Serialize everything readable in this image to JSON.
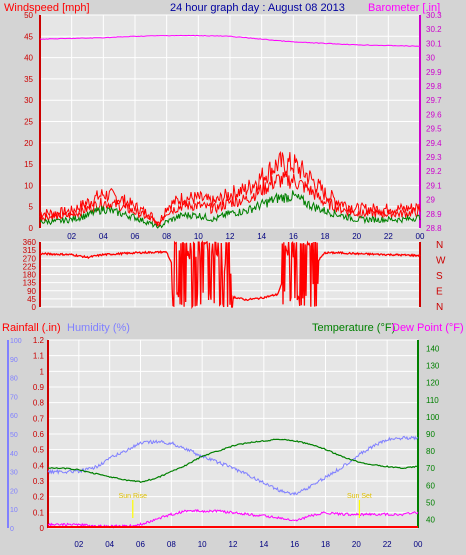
{
  "header": {
    "windspeed_label": "Windspeed [mph]",
    "title": "24 hour graph day : August 08 2013",
    "barometer_label": "Barometer [.in]"
  },
  "compass_labels": [
    "N",
    "W",
    "S",
    "E",
    "N"
  ],
  "bottom_header": {
    "rainfall_label": "Rainfall (.in)",
    "humidity_label": "Humidity (%)",
    "temperature_label": "Temperature (°F)",
    "dewpoint_label": "Dew Point (°F)"
  },
  "sun": {
    "sunrise_label": "Sun Rise",
    "sunset_label": "Sun Set",
    "sunrise_hour": 5.5,
    "sunset_hour": 20.2
  },
  "colors": {
    "background": "#d4d4d4",
    "plot_bg": "#e6e6e6",
    "grid": "#ffffff",
    "wind": "#ff0000",
    "gust": "#ff0000",
    "avg_wind": "#008000",
    "barometer": "#ff00ff",
    "direction": "#ff0000",
    "humidity": "#8080ff",
    "temperature": "#008000",
    "dewpoint": "#ff00ff",
    "rain": "#ff0000",
    "sun": "#ffff00",
    "title": "#0000a0"
  },
  "chart_data": [
    {
      "type": "line",
      "name": "wind-barometer",
      "x_ticks": [
        "02",
        "04",
        "06",
        "08",
        "10",
        "12",
        "14",
        "16",
        "18",
        "20",
        "22",
        "00"
      ],
      "y_left": {
        "ticks": [
          "0",
          "5",
          "10",
          "15",
          "20",
          "25",
          "30",
          "35",
          "40",
          "45",
          "50"
        ],
        "ylim": [
          0,
          50
        ]
      },
      "y_right": {
        "ticks": [
          "28.8",
          "28.9",
          "29",
          "29.1",
          "29.2",
          "29.3",
          "29.4",
          "29.5",
          "29.6",
          "29.7",
          "29.8",
          "29.9",
          "30",
          "30.1",
          "30.2",
          "30.3"
        ],
        "ylim": [
          28.8,
          30.3
        ]
      },
      "gust": {
        "x": [
          0,
          1,
          2,
          3,
          4,
          5,
          6,
          7,
          7.5,
          8,
          9,
          10,
          11,
          12,
          13,
          14,
          15,
          16,
          17,
          18,
          19,
          20,
          21,
          22,
          23,
          24
        ],
        "y": [
          3.5,
          3.5,
          4,
          6,
          8,
          7,
          5,
          3,
          1,
          5,
          7,
          7,
          6,
          8,
          9,
          12,
          15,
          15,
          12,
          8,
          6,
          4.5,
          4.5,
          4.5,
          4.5,
          5
        ]
      },
      "avg_wind": {
        "x": [
          0,
          1,
          2,
          3,
          4,
          5,
          6,
          7,
          7.5,
          8,
          9,
          10,
          11,
          12,
          13,
          14,
          15,
          16,
          17,
          18,
          19,
          20,
          21,
          22,
          23,
          24
        ],
        "y": [
          1.5,
          1.5,
          2,
          3,
          4.5,
          3.5,
          2.5,
          1,
          0,
          1.5,
          3,
          3,
          2,
          3.5,
          4,
          5.5,
          7,
          7.5,
          5.5,
          4,
          3,
          2,
          2,
          2,
          2,
          2.5
        ]
      },
      "barometer": {
        "x": [
          0,
          2,
          4,
          6,
          8,
          10,
          12,
          14,
          16,
          18,
          20,
          22,
          24
        ],
        "y": [
          30.13,
          30.135,
          30.14,
          30.15,
          30.155,
          30.155,
          30.15,
          30.13,
          30.11,
          30.1,
          30.09,
          30.085,
          30.08
        ]
      }
    },
    {
      "type": "line",
      "name": "wind-direction",
      "y_ticks": [
        "0",
        "45",
        "90",
        "135",
        "180",
        "225",
        "270",
        "315",
        "360"
      ],
      "ylim": [
        0,
        360
      ],
      "x": [
        0,
        2,
        3,
        4,
        6,
        8,
        8.5,
        9,
        10,
        11,
        12,
        13,
        14,
        15,
        15.5,
        16,
        17,
        18,
        19,
        20,
        22,
        24
      ],
      "y": [
        295,
        290,
        275,
        290,
        300,
        305,
        200,
        150,
        180,
        160,
        60,
        40,
        50,
        70,
        180,
        160,
        200,
        300,
        300,
        295,
        290,
        285
      ],
      "volatile_ranges": [
        [
          8.3,
          12.2
        ],
        [
          15.3,
          17.6
        ]
      ]
    },
    {
      "type": "line",
      "name": "rain-humidity-temperature",
      "x_ticks": [
        "02",
        "04",
        "06",
        "08",
        "10",
        "12",
        "14",
        "16",
        "18",
        "20",
        "22",
        "00"
      ],
      "rain_ticks": [
        "0",
        "0.1",
        "0.2",
        "0.3",
        "0.4",
        "0.5",
        "0.6",
        "0.7",
        "0.8",
        "0.9",
        "1",
        "1.1",
        "1.2"
      ],
      "rain_ylim": [
        0,
        1.2
      ],
      "humidity_ticks": [
        "0",
        "10",
        "20",
        "30",
        "40",
        "50",
        "60",
        "70",
        "80",
        "90",
        "100"
      ],
      "humidity_ylim": [
        0,
        100
      ],
      "temp_ticks": [
        "40",
        "50",
        "60",
        "70",
        "80",
        "90",
        "100",
        "110",
        "120",
        "130",
        "140"
      ],
      "temp_ylim": [
        35,
        145
      ],
      "humidity": {
        "x": [
          0,
          1,
          2,
          3,
          4,
          5,
          6,
          7,
          8,
          9,
          10,
          11,
          12,
          13,
          14,
          15,
          16,
          17,
          18,
          19,
          20,
          21,
          22,
          23,
          24
        ],
        "y": [
          30,
          30,
          30,
          32,
          37,
          41,
          45,
          46,
          45,
          42,
          38,
          35,
          32,
          28,
          24,
          20,
          18,
          22,
          27,
          32,
          38,
          43,
          47,
          48,
          48
        ]
      },
      "temperature": {
        "x": [
          0,
          1,
          2,
          3,
          4,
          5,
          6,
          7,
          8,
          9,
          10,
          11,
          12,
          13,
          14,
          15,
          16,
          17,
          18,
          19,
          20,
          21,
          22,
          23,
          24
        ],
        "y": [
          70,
          70,
          69,
          67,
          65,
          63,
          62,
          64,
          68,
          72,
          77,
          80,
          83,
          85,
          86,
          87,
          86,
          84,
          81,
          77,
          74,
          72,
          71,
          70,
          71
        ]
      },
      "dewpoint": {
        "x": [
          0,
          1,
          2,
          3,
          4,
          5,
          6,
          7,
          8,
          9,
          10,
          11,
          12,
          13,
          14,
          15,
          16,
          17,
          18,
          19,
          20,
          21,
          22,
          23,
          24
        ],
        "y": [
          37,
          37,
          37,
          36,
          36,
          36,
          37,
          40,
          43,
          45,
          45,
          45,
          44,
          43,
          42,
          41,
          39,
          42,
          44,
          43,
          43,
          43,
          43,
          43,
          44
        ]
      },
      "rain": {
        "x": [
          0,
          24
        ],
        "y": [
          0,
          0
        ]
      }
    }
  ]
}
